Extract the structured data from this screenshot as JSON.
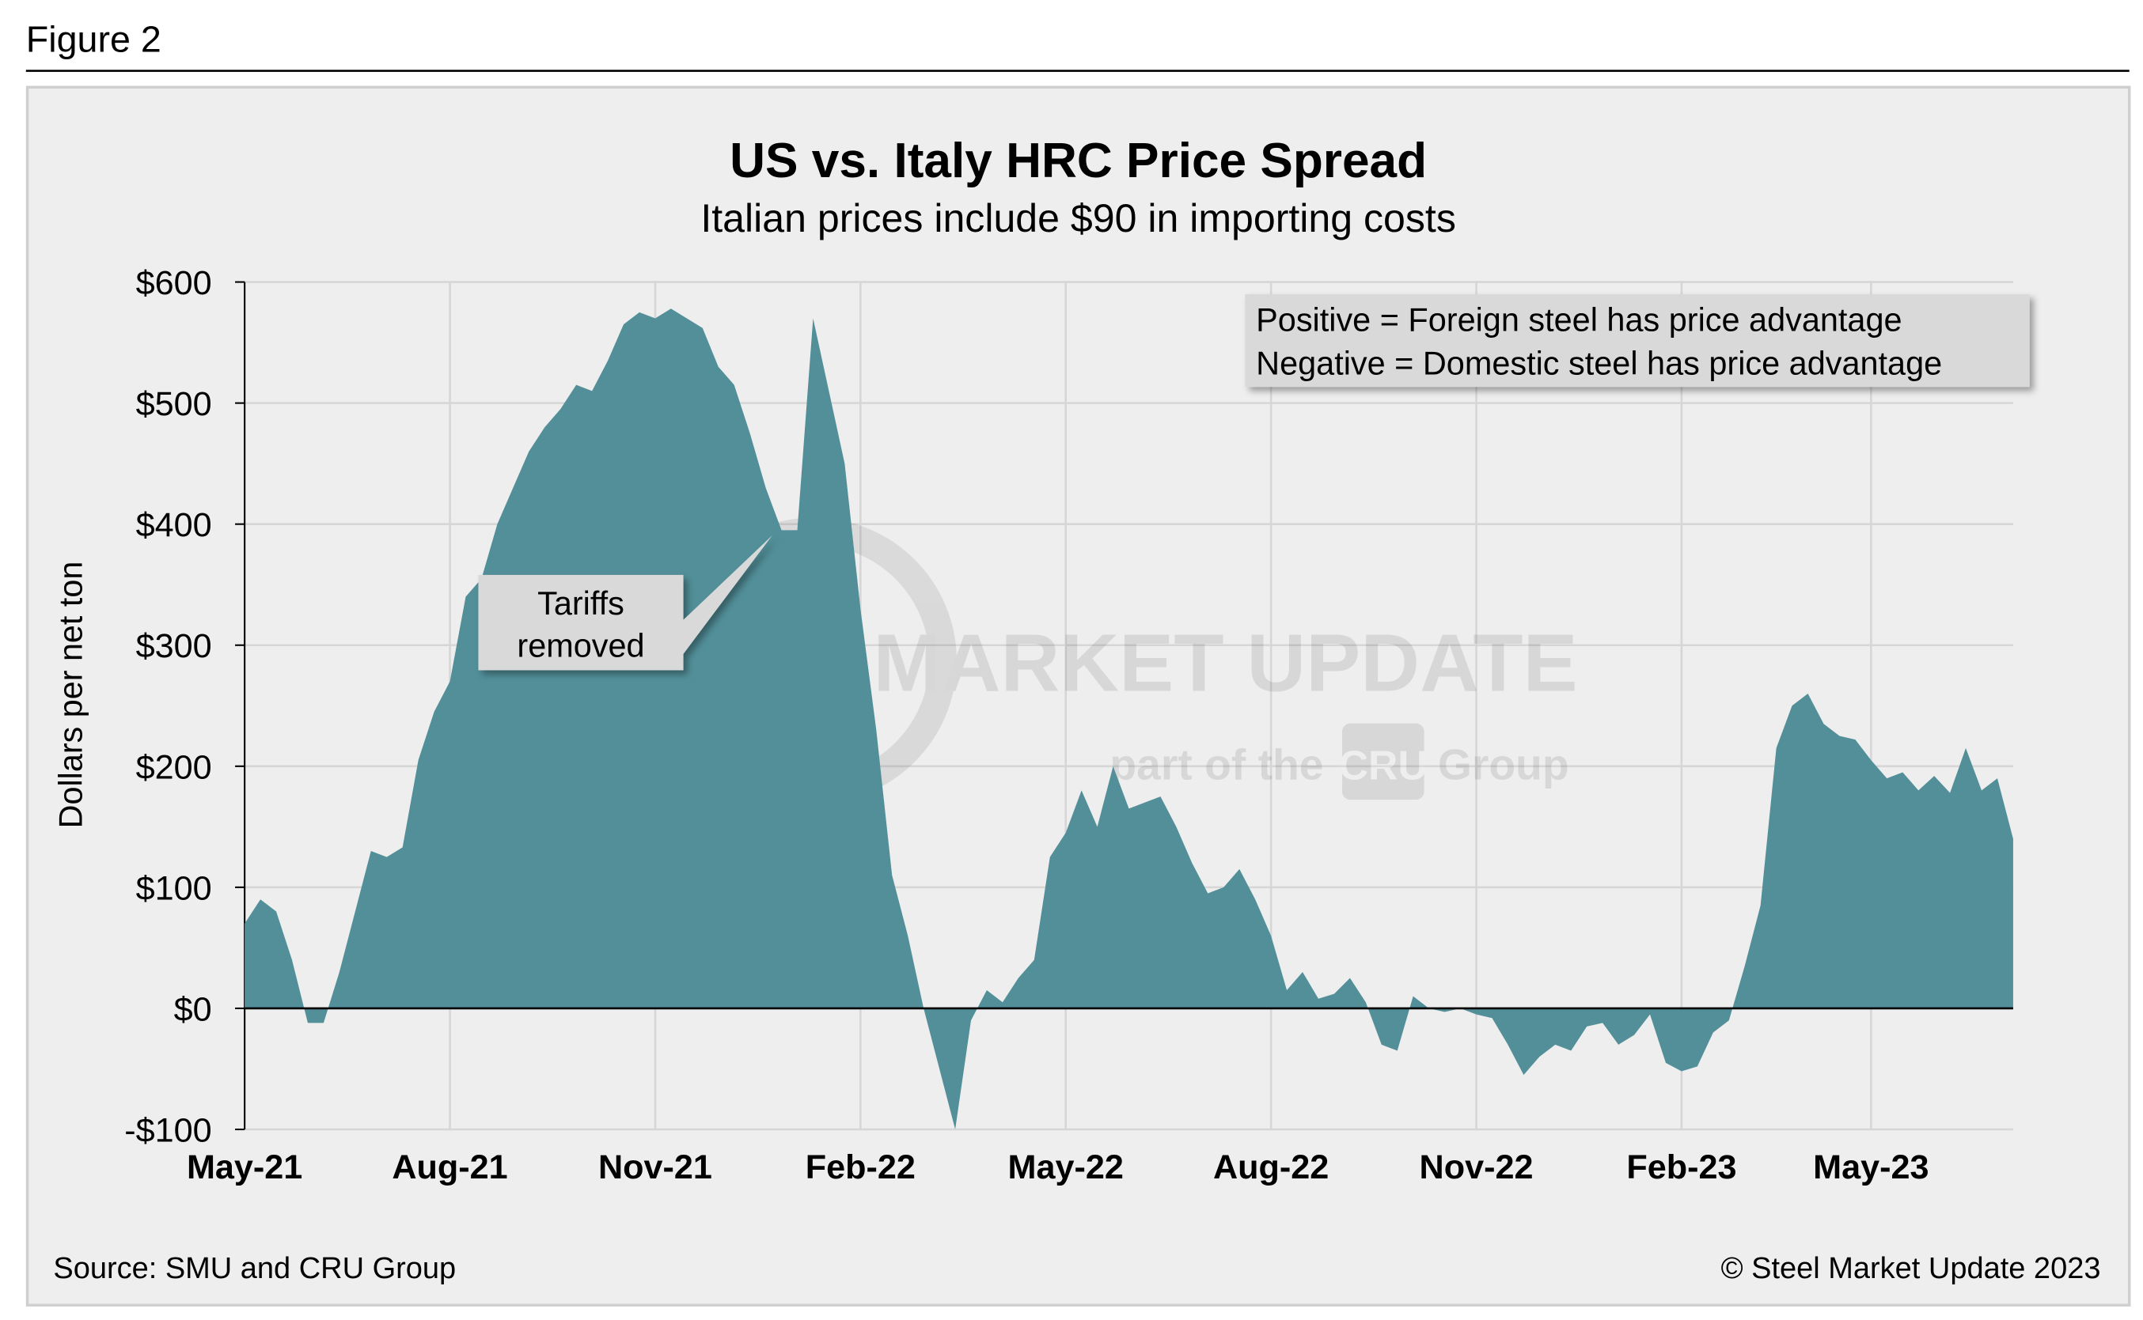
{
  "figure_label": "Figure 2",
  "chart_data": {
    "type": "area",
    "title": "US vs. Italy HRC Price Spread",
    "subtitle": "Italian prices include $90 in importing costs",
    "y_label": "Dollars per net ton",
    "color": "#528f99",
    "note_lines": [
      "Positive = Foreign steel has price advantage",
      "Negative = Domestic steel has price advantage"
    ],
    "annotation": [
      "Tariffs",
      "removed"
    ],
    "watermark": [
      "STEEL MARKET UPDATE",
      "part of the",
      "CRU",
      "Group"
    ],
    "source": "Source: SMU and CRU Group",
    "copyright": "© Steel Market Update 2023",
    "categories": [
      "May-21",
      null,
      null,
      null,
      null,
      null,
      null,
      null,
      null,
      null,
      null,
      null,
      null,
      "Aug-21",
      null,
      null,
      null,
      null,
      null,
      null,
      null,
      null,
      null,
      null,
      null,
      null,
      "Nov-21",
      null,
      null,
      null,
      null,
      null,
      null,
      null,
      null,
      null,
      null,
      null,
      null,
      "Feb-22",
      null,
      null,
      null,
      null,
      null,
      null,
      null,
      null,
      null,
      null,
      null,
      null,
      "May-22",
      null,
      null,
      null,
      null,
      null,
      null,
      null,
      null,
      null,
      null,
      null,
      null,
      "Aug-22",
      null,
      null,
      null,
      null,
      null,
      null,
      null,
      null,
      null,
      null,
      null,
      null,
      "Nov-22",
      null,
      null,
      null,
      null,
      null,
      null,
      null,
      null,
      null,
      null,
      null,
      null,
      "Feb-23",
      null,
      null,
      null,
      null,
      null,
      null,
      null,
      null,
      null,
      null,
      null,
      "May-23",
      null,
      null,
      null,
      null,
      null,
      null,
      null,
      null,
      null
    ],
    "values": [
      70,
      90,
      80,
      40,
      -12,
      -12,
      30,
      80,
      130,
      125,
      133,
      205,
      245,
      270,
      340,
      355,
      400,
      430,
      460,
      480,
      495,
      515,
      510,
      535,
      565,
      575,
      570,
      578,
      570,
      562,
      530,
      515,
      475,
      430,
      395,
      395,
      570,
      510,
      450,
      330,
      230,
      110,
      60,
      0,
      -50,
      -100,
      -10,
      15,
      5,
      25,
      40,
      125,
      145,
      180,
      150,
      200,
      165,
      170,
      175,
      150,
      120,
      95,
      100,
      115,
      90,
      60,
      15,
      30,
      8,
      12,
      25,
      5,
      -30,
      -35,
      10,
      0,
      -3,
      0,
      -5,
      -8,
      -30,
      -55,
      -40,
      -30,
      -35,
      -15,
      -12,
      -30,
      -22,
      -5,
      -45,
      -52,
      -48,
      -20,
      -10,
      35,
      85,
      215,
      250,
      260,
      235,
      225,
      222,
      205,
      190,
      195,
      180,
      192,
      178,
      215,
      180,
      190,
      140
    ],
    "ylim": [
      -100,
      600
    ],
    "yticks": [
      {
        "value": -100,
        "label": "-$100"
      },
      {
        "value": 0,
        "label": "$0"
      },
      {
        "value": 100,
        "label": "$100"
      },
      {
        "value": 200,
        "label": "$200"
      },
      {
        "value": 300,
        "label": "$300"
      },
      {
        "value": 400,
        "label": "$400"
      },
      {
        "value": 500,
        "label": "$500"
      },
      {
        "value": 600,
        "label": "$600"
      }
    ],
    "grid": true
  }
}
